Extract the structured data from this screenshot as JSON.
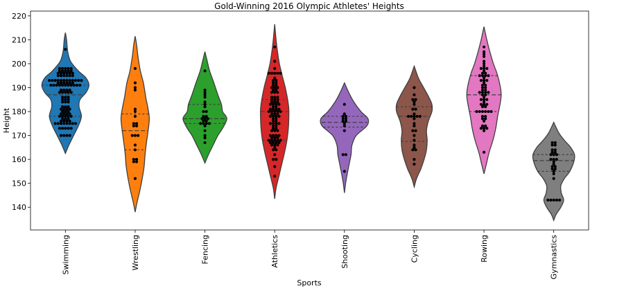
{
  "chart_data": {
    "type": "violin",
    "title": "Gold-Winning 2016 Olympic Athletes' Heights",
    "xlabel": "Sports",
    "ylabel": "Height",
    "ylim": [
      130.5,
      222
    ],
    "yticks": [
      140,
      150,
      160,
      170,
      180,
      190,
      200,
      210,
      220
    ],
    "grid": false,
    "legend": "none",
    "categories": [
      "Swimming",
      "Wrestling",
      "Fencing",
      "Athletics",
      "Shooting",
      "Cycling",
      "Rowing",
      "Gymnastics"
    ],
    "series": [
      {
        "category": "Swimming",
        "color": "#1f77b4",
        "quartiles": [
          178,
          187,
          191
        ],
        "violin_range": [
          162.5,
          213
        ],
        "density": [
          [
            162.5,
            0.0
          ],
          [
            166,
            0.15
          ],
          [
            170,
            0.35
          ],
          [
            174,
            0.55
          ],
          [
            178,
            0.68
          ],
          [
            182,
            0.58
          ],
          [
            185,
            0.62
          ],
          [
            188,
            0.88
          ],
          [
            191,
            1.0
          ],
          [
            194,
            0.88
          ],
          [
            197,
            0.55
          ],
          [
            201,
            0.22
          ],
          [
            205,
            0.1
          ],
          [
            210,
            0.05
          ],
          [
            213,
            0.0
          ]
        ],
        "points": [
          175,
          175,
          175,
          175,
          175,
          175,
          175,
          175,
          170,
          170,
          170,
          170,
          173,
          173,
          173,
          173,
          173,
          176,
          176,
          176,
          176,
          177,
          177,
          177,
          178,
          178,
          178,
          178,
          178,
          179,
          179,
          179,
          179,
          180,
          180,
          180,
          181,
          181,
          181,
          181,
          182,
          182,
          182,
          184,
          184,
          184,
          185,
          185,
          185,
          186,
          186,
          186,
          188,
          188,
          188,
          188,
          188,
          189,
          189,
          189,
          189,
          191,
          191,
          191,
          191,
          191,
          191,
          191,
          191,
          191,
          191,
          191,
          192,
          192,
          192,
          192,
          192,
          192,
          193,
          193,
          193,
          193,
          193,
          193,
          193,
          193,
          193,
          193,
          193,
          193,
          195,
          195,
          195,
          195,
          195,
          195,
          196,
          196,
          196,
          196,
          196,
          196,
          197,
          197,
          197,
          197,
          197,
          198,
          198,
          198,
          198,
          198,
          206
        ]
      },
      {
        "category": "Wrestling",
        "color": "#ff7f0e",
        "quartiles": [
          164,
          172,
          179
        ],
        "violin_range": [
          138,
          211.5
        ],
        "density": [
          [
            138,
            0.0
          ],
          [
            142,
            0.08
          ],
          [
            147,
            0.2
          ],
          [
            152,
            0.3
          ],
          [
            157,
            0.38
          ],
          [
            162,
            0.42
          ],
          [
            167,
            0.48
          ],
          [
            172,
            0.55
          ],
          [
            177,
            0.6
          ],
          [
            181,
            0.55
          ],
          [
            186,
            0.45
          ],
          [
            192,
            0.35
          ],
          [
            197,
            0.22
          ],
          [
            203,
            0.12
          ],
          [
            208,
            0.06
          ],
          [
            211.5,
            0.0
          ]
        ],
        "points": [
          152,
          159,
          159,
          160,
          160,
          164,
          166,
          170,
          170,
          170,
          174,
          174,
          175,
          175,
          178,
          180,
          181,
          189,
          190,
          192,
          198
        ]
      },
      {
        "category": "Fencing",
        "color": "#2ca02c",
        "quartiles": [
          175,
          177,
          183
        ],
        "violin_range": [
          158.5,
          205
        ],
        "density": [
          [
            158.5,
            0.0
          ],
          [
            162,
            0.15
          ],
          [
            166,
            0.35
          ],
          [
            170,
            0.55
          ],
          [
            173,
            0.75
          ],
          [
            177,
            0.93
          ],
          [
            180,
            0.75
          ],
          [
            183,
            0.7
          ],
          [
            187,
            0.55
          ],
          [
            192,
            0.38
          ],
          [
            197,
            0.2
          ],
          [
            201,
            0.1
          ],
          [
            205,
            0.0
          ]
        ],
        "points": [
          167,
          169,
          170,
          172,
          174,
          175,
          175,
          175,
          175,
          176,
          176,
          177,
          177,
          177,
          178,
          178,
          180,
          180,
          182,
          183,
          184,
          186,
          187,
          188,
          189,
          197
        ]
      },
      {
        "category": "Athletics",
        "color": "#d62728",
        "quartiles": [
          168,
          180,
          185
        ],
        "violin_range": [
          143.5,
          216.5
        ],
        "density": [
          [
            143.5,
            0.0
          ],
          [
            148,
            0.06
          ],
          [
            153,
            0.18
          ],
          [
            158,
            0.3
          ],
          [
            163,
            0.42
          ],
          [
            168,
            0.52
          ],
          [
            173,
            0.58
          ],
          [
            177,
            0.6
          ],
          [
            181,
            0.6
          ],
          [
            185,
            0.55
          ],
          [
            190,
            0.45
          ],
          [
            195,
            0.32
          ],
          [
            200,
            0.2
          ],
          [
            205,
            0.12
          ],
          [
            210,
            0.06
          ],
          [
            216.5,
            0.0
          ]
        ],
        "points": [
          153,
          157,
          160,
          160,
          162,
          164,
          164,
          165,
          166,
          166,
          166,
          167,
          167,
          167,
          167,
          168,
          168,
          168,
          168,
          168,
          169,
          169,
          169,
          170,
          170,
          170,
          170,
          172,
          172,
          172,
          173,
          173,
          174,
          174,
          175,
          175,
          175,
          175,
          176,
          176,
          177,
          177,
          178,
          178,
          178,
          178,
          179,
          179,
          179,
          180,
          180,
          180,
          180,
          180,
          181,
          181,
          181,
          181,
          182,
          182,
          183,
          183,
          183,
          183,
          184,
          184,
          184,
          185,
          185,
          185,
          186,
          186,
          186,
          188,
          188,
          188,
          189,
          189,
          190,
          190,
          190,
          191,
          191,
          192,
          192,
          193,
          193,
          194,
          196,
          196,
          196,
          196,
          196,
          198,
          201,
          207
        ]
      },
      {
        "category": "Shooting",
        "color": "#9467bd",
        "quartiles": [
          173.5,
          175.5,
          178
        ],
        "violin_range": [
          146,
          192
        ],
        "density": [
          [
            146,
            0.0
          ],
          [
            150,
            0.05
          ],
          [
            154,
            0.12
          ],
          [
            158,
            0.2
          ],
          [
            162,
            0.28
          ],
          [
            166,
            0.32
          ],
          [
            170,
            0.5
          ],
          [
            174,
            0.95
          ],
          [
            177,
            1.0
          ],
          [
            180,
            0.7
          ],
          [
            184,
            0.4
          ],
          [
            188,
            0.18
          ],
          [
            192,
            0.0
          ]
        ],
        "points": [
          155,
          162,
          162,
          172,
          174,
          175,
          176,
          176,
          177,
          177,
          178,
          178,
          179,
          183
        ]
      },
      {
        "category": "Cycling",
        "color": "#8c564b",
        "quartiles": [
          167.5,
          178,
          182
        ],
        "violin_range": [
          148.5,
          199
        ],
        "density": [
          [
            148.5,
            0.0
          ],
          [
            152,
            0.1
          ],
          [
            156,
            0.28
          ],
          [
            160,
            0.42
          ],
          [
            164,
            0.52
          ],
          [
            168,
            0.55
          ],
          [
            172,
            0.52
          ],
          [
            176,
            0.6
          ],
          [
            180,
            0.75
          ],
          [
            183,
            0.75
          ],
          [
            186,
            0.62
          ],
          [
            190,
            0.4
          ],
          [
            194,
            0.18
          ],
          [
            199,
            0.0
          ]
        ],
        "points": [
          158,
          160,
          164,
          164,
          165,
          166,
          168,
          170,
          172,
          172,
          174,
          175,
          177,
          178,
          178,
          178,
          178,
          178,
          179,
          181,
          181,
          183,
          184,
          185,
          185,
          187,
          190
        ]
      },
      {
        "category": "Rowing",
        "color": "#e377c2",
        "quartiles": [
          180,
          187,
          195
        ],
        "violin_range": [
          154,
          215.5
        ],
        "density": [
          [
            154,
            0.0
          ],
          [
            158,
            0.1
          ],
          [
            163,
            0.22
          ],
          [
            168,
            0.38
          ],
          [
            173,
            0.5
          ],
          [
            178,
            0.58
          ],
          [
            183,
            0.68
          ],
          [
            187,
            0.73
          ],
          [
            191,
            0.68
          ],
          [
            196,
            0.55
          ],
          [
            200,
            0.4
          ],
          [
            205,
            0.25
          ],
          [
            210,
            0.12
          ],
          [
            215.5,
            0.0
          ]
        ],
        "points": [
          163,
          172,
          173,
          173,
          173,
          174,
          174,
          176,
          177,
          177,
          178,
          178,
          180,
          180,
          180,
          180,
          180,
          180,
          182,
          182,
          183,
          183,
          183,
          184,
          185,
          185,
          185,
          186,
          187,
          187,
          188,
          188,
          188,
          188,
          189,
          189,
          190,
          190,
          191,
          191,
          192,
          193,
          193,
          193,
          194,
          195,
          195,
          195,
          195,
          196,
          196,
          197,
          198,
          198,
          198,
          199,
          200,
          201,
          203,
          204,
          205,
          207
        ]
      },
      {
        "category": "Gymnastics",
        "color": "#7f7f7f",
        "quartiles": [
          155,
          159.5,
          162
        ],
        "violin_range": [
          134.5,
          175.5
        ],
        "density": [
          [
            134.5,
            0.0
          ],
          [
            137,
            0.1
          ],
          [
            140,
            0.3
          ],
          [
            143,
            0.42
          ],
          [
            146,
            0.32
          ],
          [
            149,
            0.3
          ],
          [
            152,
            0.45
          ],
          [
            155,
            0.68
          ],
          [
            159,
            0.85
          ],
          [
            162,
            0.88
          ],
          [
            165,
            0.72
          ],
          [
            168,
            0.45
          ],
          [
            171,
            0.22
          ],
          [
            175.5,
            0.0
          ]
        ],
        "points": [
          143,
          143,
          143,
          143,
          143,
          152,
          154,
          155,
          156,
          156,
          157,
          157,
          158,
          159,
          160,
          160,
          160,
          162,
          162,
          162,
          163,
          163,
          164,
          164,
          166,
          166,
          167,
          167
        ]
      }
    ]
  }
}
